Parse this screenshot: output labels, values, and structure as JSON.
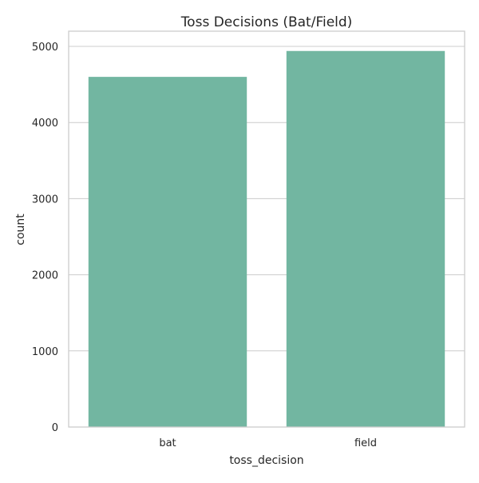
{
  "chart_data": {
    "type": "bar",
    "title": "Toss Decisions (Bat/Field)",
    "xlabel": "toss_decision",
    "ylabel": "count",
    "categories": [
      "bat",
      "field"
    ],
    "values": [
      4600,
      4940
    ],
    "ylim": [
      0,
      5200
    ],
    "yticks": [
      0,
      1000,
      2000,
      3000,
      4000,
      5000
    ],
    "grid": true,
    "bar_color": "#72b6a1"
  }
}
